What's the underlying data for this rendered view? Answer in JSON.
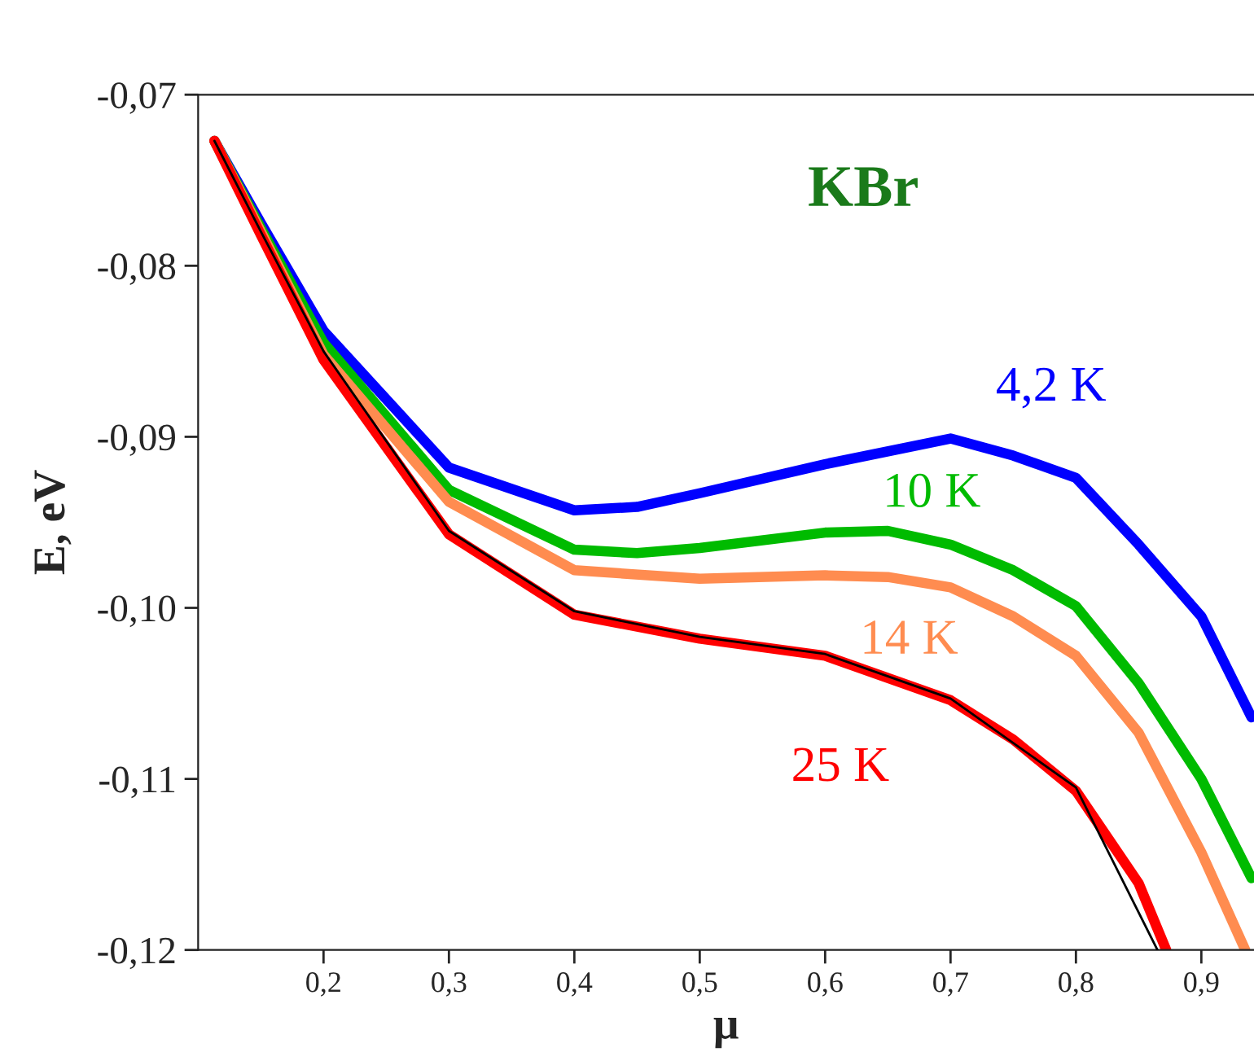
{
  "chart_data": {
    "type": "line",
    "title": "KBr",
    "xlabel": "μ",
    "ylabel": "E, eV",
    "xlim": [
      0.1,
      0.942
    ],
    "ylim": [
      -0.12,
      -0.07
    ],
    "xticks": [
      {
        "value": 0.2,
        "label": "0,2"
      },
      {
        "value": 0.3,
        "label": "0,3"
      },
      {
        "value": 0.4,
        "label": "0,4"
      },
      {
        "value": 0.5,
        "label": "0,5"
      },
      {
        "value": 0.6,
        "label": "0,6"
      },
      {
        "value": 0.7,
        "label": "0,7"
      },
      {
        "value": 0.8,
        "label": "0,8"
      },
      {
        "value": 0.9,
        "label": "0,9"
      }
    ],
    "yticks": [
      {
        "value": -0.07,
        "label": "-0,07"
      },
      {
        "value": -0.08,
        "label": "-0,08"
      },
      {
        "value": -0.09,
        "label": "-0,09"
      },
      {
        "value": -0.1,
        "label": "-0,10"
      },
      {
        "value": -0.11,
        "label": "-0,11"
      },
      {
        "value": -0.12,
        "label": "-0,12"
      }
    ],
    "grid": false,
    "legend": false,
    "marker": "none",
    "line_style": "solid",
    "series": [
      {
        "name": "4,2 K",
        "color": "#0000ff",
        "x": [
          0.113,
          0.15,
          0.2,
          0.3,
          0.4,
          0.45,
          0.5,
          0.6,
          0.7,
          0.75,
          0.8,
          0.85,
          0.9,
          0.94
        ],
        "values": [
          -0.0727,
          -0.0775,
          -0.0838,
          -0.0918,
          -0.0943,
          -0.0941,
          -0.0933,
          -0.0916,
          -0.0901,
          -0.0911,
          -0.0924,
          -0.0963,
          -0.1005,
          -0.1064
        ]
      },
      {
        "name": "10 K",
        "color": "#00bb00",
        "x": [
          0.113,
          0.15,
          0.2,
          0.3,
          0.4,
          0.45,
          0.5,
          0.6,
          0.65,
          0.7,
          0.75,
          0.8,
          0.85,
          0.9,
          0.94
        ],
        "values": [
          -0.0727,
          -0.0778,
          -0.0845,
          -0.0931,
          -0.0966,
          -0.0968,
          -0.0965,
          -0.0956,
          -0.0955,
          -0.0963,
          -0.0978,
          -0.0999,
          -0.1044,
          -0.11,
          -0.1158
        ]
      },
      {
        "name": "14 K",
        "color": "#ff8c50",
        "x": [
          0.113,
          0.15,
          0.2,
          0.3,
          0.4,
          0.5,
          0.6,
          0.65,
          0.7,
          0.75,
          0.8,
          0.85,
          0.9,
          0.935
        ],
        "values": [
          -0.0727,
          -0.078,
          -0.0852,
          -0.0938,
          -0.0978,
          -0.0983,
          -0.0981,
          -0.0982,
          -0.0988,
          -0.1005,
          -0.1028,
          -0.1073,
          -0.1143,
          -0.12
        ]
      },
      {
        "name": "25 K",
        "color": "#ff0000",
        "x": [
          0.113,
          0.15,
          0.2,
          0.3,
          0.4,
          0.5,
          0.6,
          0.7,
          0.75,
          0.8,
          0.85,
          0.872
        ],
        "values": [
          -0.0727,
          -0.0782,
          -0.0855,
          -0.0957,
          -0.1004,
          -0.1018,
          -0.1028,
          -0.1054,
          -0.1077,
          -0.1107,
          -0.1161,
          -0.12
        ]
      },
      {
        "color": "#000000",
        "x": [
          0.113,
          0.15,
          0.2,
          0.3,
          0.4,
          0.5,
          0.6,
          0.7,
          0.8,
          0.865
        ],
        "values": [
          -0.0727,
          -0.078,
          -0.085,
          -0.0955,
          -0.1002,
          -0.1017,
          -0.1027,
          -0.1053,
          -0.1105,
          -0.12
        ]
      }
    ]
  }
}
